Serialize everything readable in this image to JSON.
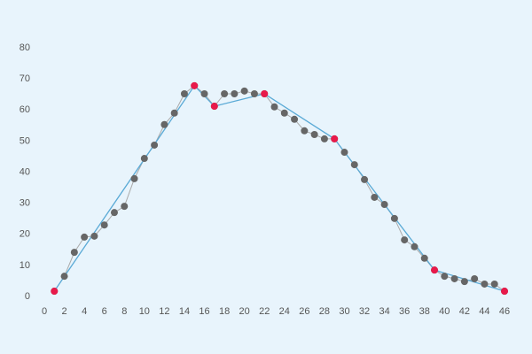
{
  "chart_data": {
    "type": "line",
    "xlim": [
      0,
      46
    ],
    "xticks": [
      0,
      2,
      4,
      6,
      8,
      10,
      12,
      14,
      16,
      18,
      20,
      22,
      24,
      26,
      28,
      30,
      32,
      34,
      36,
      38,
      40,
      42,
      44,
      46
    ],
    "ylim": [
      0,
      80
    ],
    "yticks": [
      0,
      10,
      20,
      30,
      40,
      50,
      60,
      70,
      80
    ],
    "grid": false,
    "series": [
      {
        "color": "#666666",
        "line_color": "#aaaaaa",
        "x": [
          1,
          2,
          3,
          4,
          5,
          6,
          7,
          8,
          9,
          10,
          11,
          12,
          13,
          14,
          15,
          16,
          17,
          18,
          19,
          20,
          21,
          22,
          23,
          24,
          25,
          26,
          27,
          28,
          29,
          30,
          31,
          32,
          33,
          34,
          35,
          36,
          37,
          38,
          39,
          40,
          41,
          42,
          43,
          44,
          45,
          46
        ],
        "values": [
          1.7,
          6.5,
          14.2,
          19.1,
          19.4,
          23,
          27,
          29,
          37.9,
          44.4,
          48.7,
          55.3,
          59,
          65.2,
          67.8,
          65.2,
          61.2,
          65.2,
          65.2,
          66.1,
          65.2,
          65.2,
          61,
          59,
          57,
          53.3,
          52.1,
          50.7,
          50.7,
          46.4,
          42.4,
          37.6,
          31.9,
          29.6,
          25.1,
          18.2,
          16,
          12.3,
          8.5,
          6.5,
          5.7,
          4.8,
          5.7,
          4,
          4,
          1.7
        ]
      },
      {
        "color": "#e8194a",
        "line_color": "#5aaad6",
        "x": [
          1,
          15,
          17,
          22,
          29,
          39,
          46
        ],
        "values": [
          1.7,
          67.8,
          61.2,
          65.2,
          50.7,
          8.5,
          1.7
        ]
      }
    ]
  }
}
